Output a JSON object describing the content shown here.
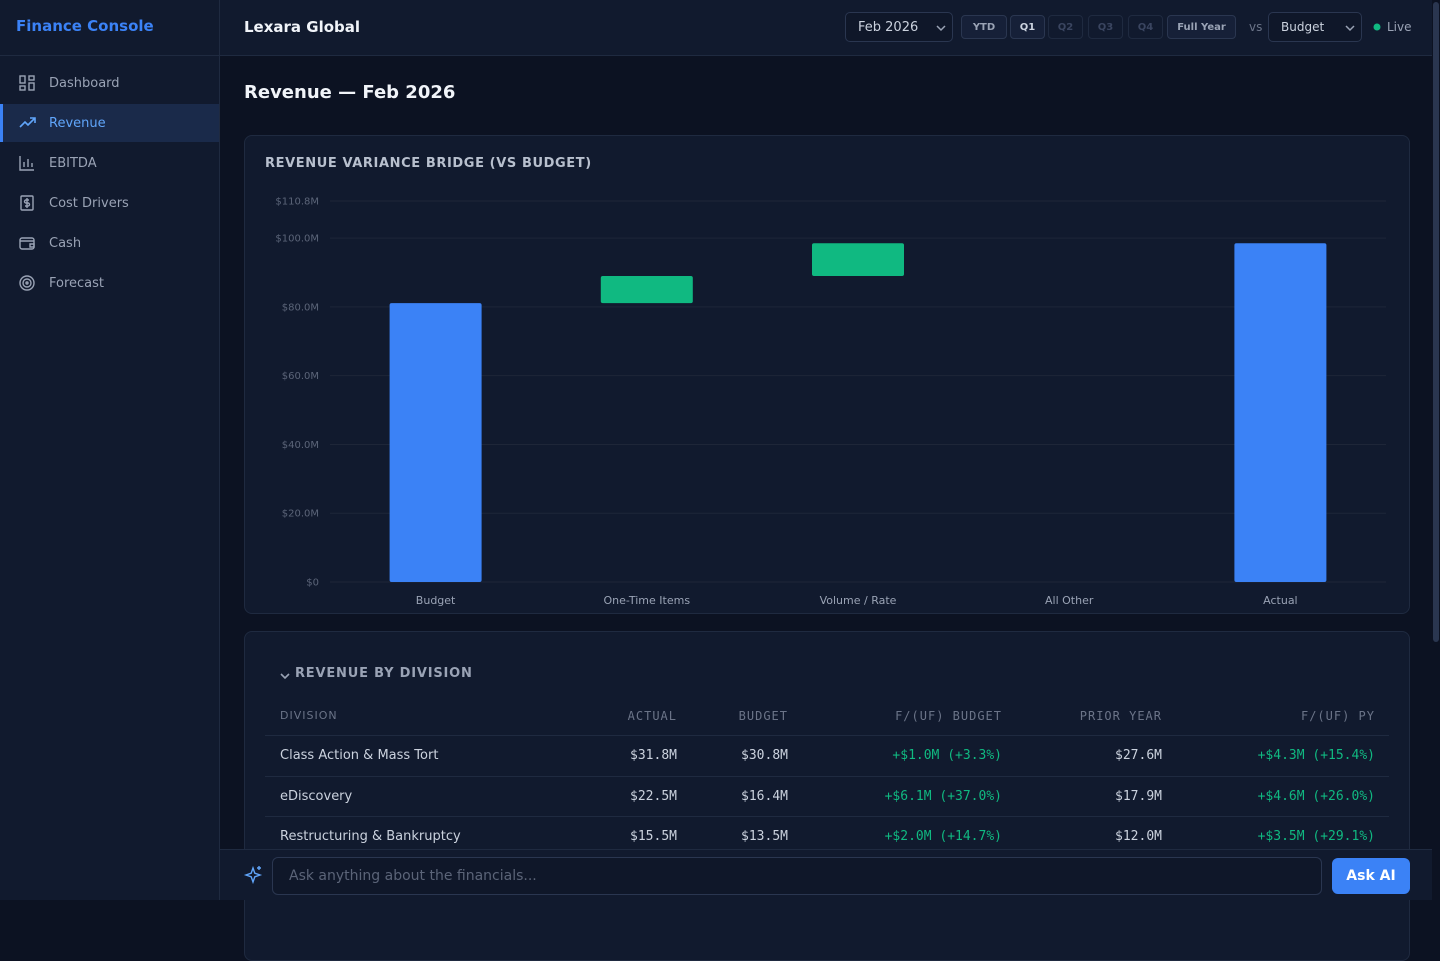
{
  "sidebar": {
    "brand": "Finance Console",
    "nav": [
      "Dashboard",
      "Revenue",
      "EBITDA",
      "Cost Drivers",
      "Cash",
      "Forecast"
    ]
  },
  "header": {
    "company": "Lexara Global",
    "period": "Feb 2026",
    "ranges": [
      "YTD",
      "Q1",
      "Q2",
      "Q3",
      "Q4",
      "Full Year"
    ],
    "vs": "vs",
    "comparison": "Budget",
    "status": "Live"
  },
  "page": {
    "title": "Revenue — Feb 2026"
  },
  "chart_data": {
    "type": "waterfall",
    "title": "REVENUE VARIANCE BRIDGE (VS BUDGET)",
    "categories": [
      "Budget",
      "One-Time Items",
      "Volume / Rate",
      "All Other",
      "Actual"
    ],
    "values": [
      81.1,
      7.9,
      9.5,
      0,
      98.5
    ],
    "total_color": "#3b82f6",
    "increase_color": "#10b981",
    "ylim": [
      0,
      110.8
    ],
    "yticks": [
      {
        "value": 0,
        "label": "$0"
      },
      {
        "value": 20,
        "label": "$20.0M"
      },
      {
        "value": 40,
        "label": "$40.0M"
      },
      {
        "value": 60,
        "label": "$60.0M"
      },
      {
        "value": 80,
        "label": "$80.0M"
      },
      {
        "value": 100,
        "label": "$100.0M"
      },
      {
        "value": 110.8,
        "label": "$110.8M"
      }
    ],
    "grid": true
  },
  "table": {
    "title": "REVENUE BY DIVISION",
    "columns": [
      "DIVISION",
      "ACTUAL",
      "BUDGET",
      "F/(UF) BUDGET",
      "PRIOR YEAR",
      "F/(UF) PY"
    ],
    "rows": [
      [
        "Class Action & Mass Tort",
        "$31.8M",
        "$30.8M",
        "+$1.0M (+3.3%)",
        "$27.6M",
        "+$4.3M (+15.4%)"
      ],
      [
        "eDiscovery",
        "$22.5M",
        "$16.4M",
        "+$6.1M (+37.0%)",
        "$17.9M",
        "+$4.6M (+26.0%)"
      ],
      [
        "Restructuring & Bankruptcy",
        "$15.5M",
        "$13.5M",
        "+$2.0M (+14.7%)",
        "$12.0M",
        "+$3.5M (+29.1%)"
      ]
    ]
  },
  "ask": {
    "placeholder": "Ask anything about the financials...",
    "button": "Ask AI"
  }
}
